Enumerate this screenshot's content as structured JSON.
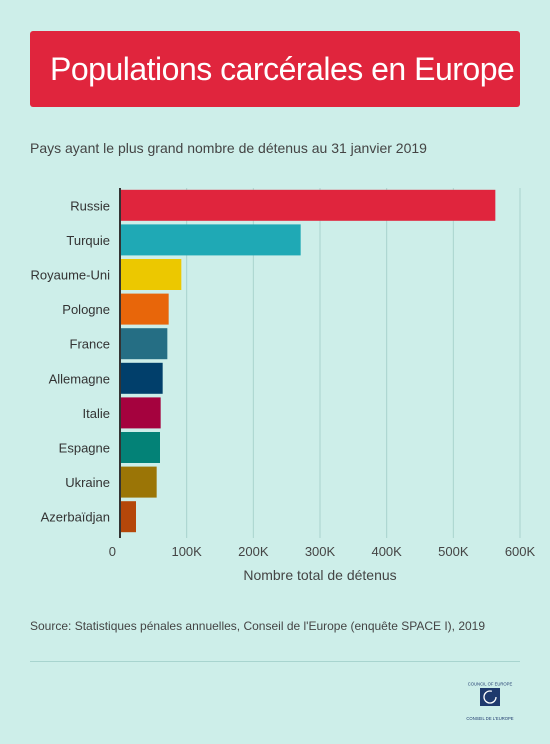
{
  "title": "Populations carcérales en Europe",
  "subtitle": "Pays ayant le plus grand nombre de détenus au 31 janvier 2019",
  "source": "Source: Statistiques pénales annuelles, Conseil de l'Europe (enquête SPACE I), 2019",
  "logo": {
    "top_text": "COUNCIL OF EUROPE",
    "bottom_text": "CONSEIL DE L'EUROPE"
  },
  "chart_data": {
    "type": "bar",
    "orientation": "horizontal",
    "categories": [
      "Russie",
      "Turquie",
      "Royaume-Uni",
      "Pologne",
      "France",
      "Allemagne",
      "Italie",
      "Espagne",
      "Ukraine",
      "Azerbaïdjan"
    ],
    "values": [
      563000,
      271000,
      92000,
      73000,
      71000,
      64000,
      61000,
      60000,
      55000,
      24000
    ],
    "colors": [
      "#e0253d",
      "#1fa9b5",
      "#ecc800",
      "#e8660a",
      "#256e84",
      "#013f6b",
      "#a5023e",
      "#038277",
      "#9b7506",
      "#b5470a"
    ],
    "xlabel": "Nombre total de détenus",
    "xticks": [
      "0",
      "100K",
      "200K",
      "300K",
      "400K",
      "500K",
      "600K"
    ],
    "xlim": [
      0,
      600000
    ],
    "grid": true
  }
}
